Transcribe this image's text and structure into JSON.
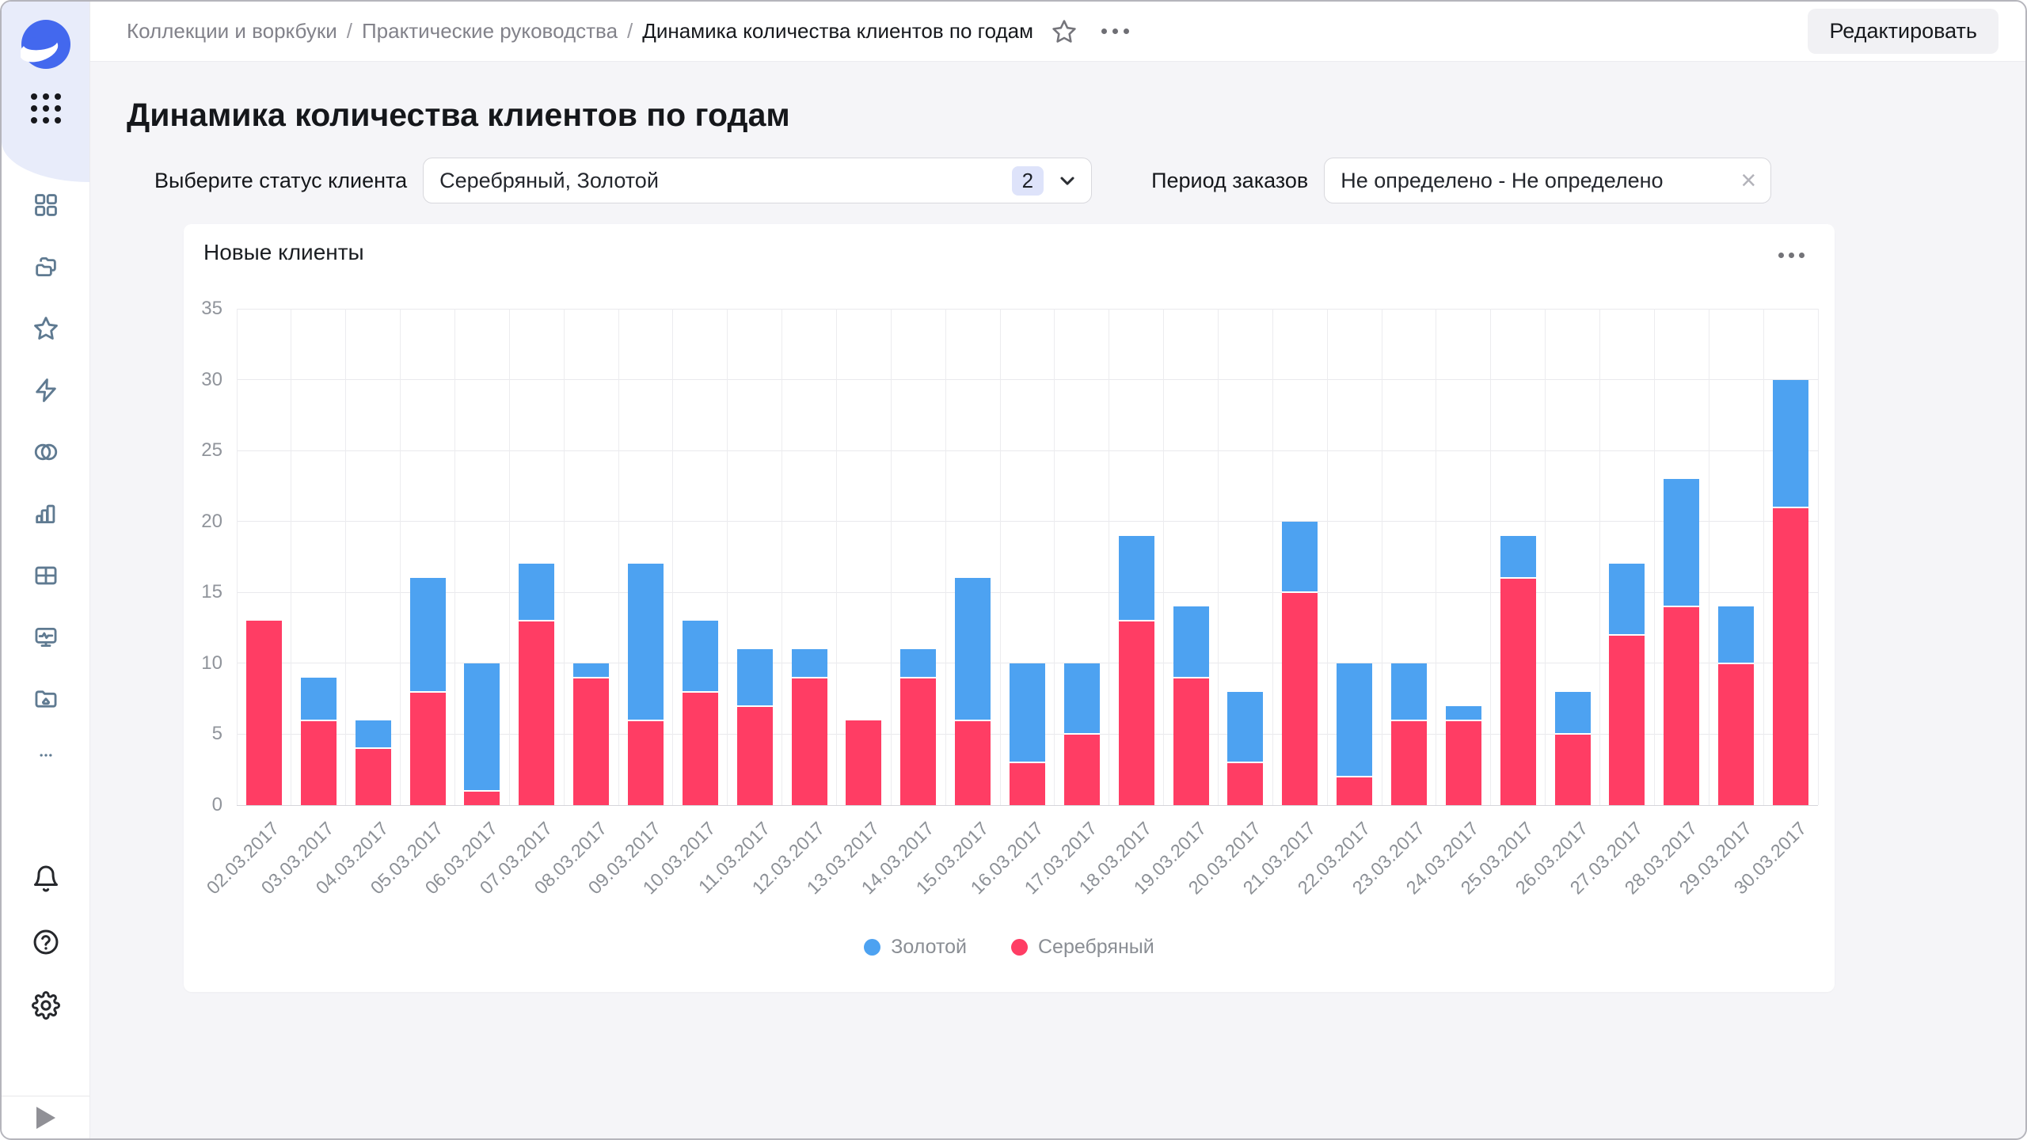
{
  "topbar": {
    "breadcrumb": [
      "Коллекции и воркбуки",
      "Практические руководства",
      "Динамика количества клиентов по годам"
    ],
    "separator": "/",
    "edit_label": "Редактировать"
  },
  "page": {
    "title": "Динамика количества клиентов по годам"
  },
  "filters": {
    "status": {
      "label": "Выберите статус клиента",
      "value": "Серебряный, Золотой",
      "count": "2"
    },
    "period": {
      "label": "Период заказов",
      "value": "Не определено - Не определено",
      "clear_glyph": "×"
    }
  },
  "chart_card": {
    "title": "Новые клиенты"
  },
  "chart_data": {
    "type": "bar",
    "stacked": true,
    "title": "Новые клиенты",
    "categories": [
      "02.03.2017",
      "03.03.2017",
      "04.03.2017",
      "05.03.2017",
      "06.03.2017",
      "07.03.2017",
      "08.03.2017",
      "09.03.2017",
      "10.03.2017",
      "11.03.2017",
      "12.03.2017",
      "13.03.2017",
      "14.03.2017",
      "15.03.2017",
      "16.03.2017",
      "17.03.2017",
      "18.03.2017",
      "19.03.2017",
      "20.03.2017",
      "21.03.2017",
      "22.03.2017",
      "23.03.2017",
      "24.03.2017",
      "25.03.2017",
      "26.03.2017",
      "27.03.2017",
      "28.03.2017",
      "29.03.2017",
      "30.03.2017"
    ],
    "series": [
      {
        "name": "Золотой",
        "color": "#4DA2F1",
        "values": [
          0,
          3,
          2,
          8,
          9,
          4,
          1,
          11,
          5,
          4,
          2,
          0,
          2,
          10,
          7,
          5,
          6,
          5,
          5,
          5,
          8,
          4,
          1,
          3,
          3,
          5,
          9,
          4,
          9
        ]
      },
      {
        "name": "Серебряный",
        "color": "#FF3D64",
        "values": [
          13,
          6,
          4,
          8,
          1,
          13,
          9,
          6,
          8,
          7,
          9,
          6,
          9,
          6,
          3,
          5,
          13,
          9,
          3,
          15,
          2,
          6,
          6,
          16,
          5,
          12,
          14,
          10,
          21
        ]
      }
    ],
    "stack_order": [
      "Серебряный",
      "Золотой"
    ],
    "xlabel": "",
    "ylabel": "",
    "ylim": [
      0,
      35
    ],
    "ytick_step": 5,
    "grid": true,
    "legend_position": "bottom"
  },
  "colors": {
    "accent_blue": "#4DA2F1",
    "accent_red": "#FF3D64",
    "sidebar_top_bg": "#e8ecfa",
    "page_bg": "#f5f5f8",
    "logo_blue": "#4368ee"
  },
  "icons": {
    "datalens-logo": "blue circle with white lens swoosh",
    "apps-grid-icon": "3x3 dots",
    "dashboards-icon": "four squares",
    "collections-icon": "stacked folders",
    "favorites-icon": "star outline",
    "connections-icon": "lightning bolt",
    "datasets-icon": "two overlapping circles",
    "charts-icon": "bar chart",
    "tables-icon": "table grid",
    "monitoring-icon": "monitor with pulse line",
    "storage-icon": "folder with image",
    "more-icon": "horizontal ellipsis",
    "notifications-icon": "bell",
    "help-icon": "question in circle",
    "settings-icon": "gear",
    "expand-icon": "play triangle",
    "favorite-star-icon": "star outline",
    "kebab-icon": "horizontal ellipsis",
    "chevron-down-icon": "chevron down",
    "clear-icon": "x cross"
  }
}
